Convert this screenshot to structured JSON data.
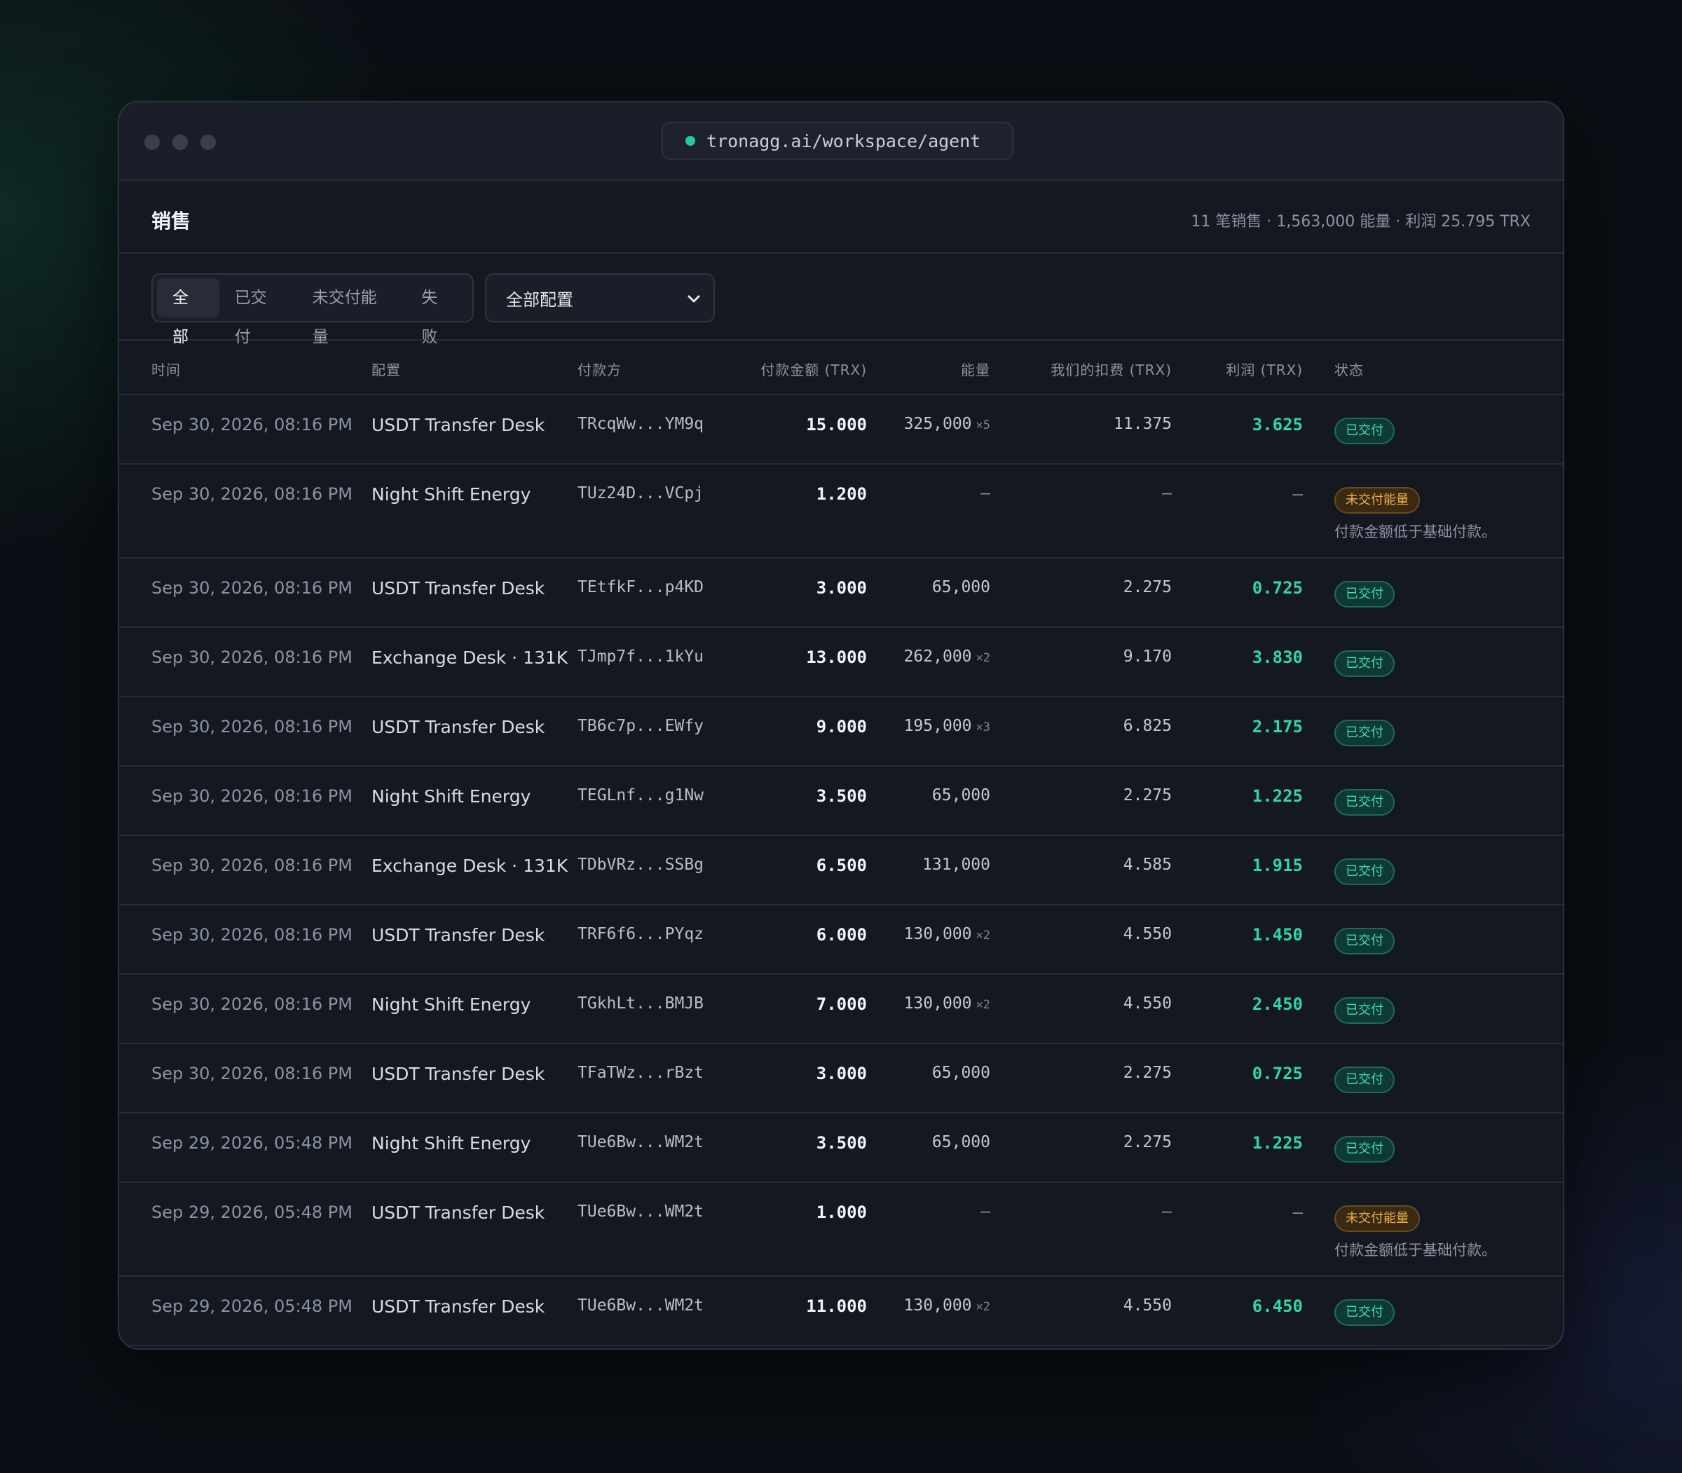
{
  "window": {
    "url": "tronagg.ai/workspace/agent"
  },
  "header": {
    "title": "销售",
    "summary": "11 笔销售 · 1,563,000 能量 · 利润 25.795 TRX"
  },
  "filters": {
    "tabs": [
      "全部",
      "已交付",
      "未交付能量",
      "失败"
    ],
    "active_tab": "全部",
    "config_select": "全部配置"
  },
  "table": {
    "columns": [
      "时间",
      "配置",
      "付款方",
      "付款金额 (TRX)",
      "能量",
      "我们的扣费 (TRX)",
      "利润 (TRX)",
      "状态"
    ],
    "rows": [
      {
        "time": "Sep 30, 2026, 08:16 PM",
        "config": "USDT Transfer Desk",
        "payer": "TRcqWw...YM9q",
        "amount": "15.000",
        "energy": "325,000",
        "mult": "×5",
        "fee": "11.375",
        "profit": "3.625",
        "status": "已交付",
        "note": ""
      },
      {
        "time": "Sep 30, 2026, 08:16 PM",
        "config": "Night Shift Energy",
        "payer": "TUz24D...VCpj",
        "amount": "1.200",
        "energy": "—",
        "mult": "",
        "fee": "—",
        "profit": "—",
        "status": "未交付能量",
        "note": "付款金额低于基础付款。"
      },
      {
        "time": "Sep 30, 2026, 08:16 PM",
        "config": "USDT Transfer Desk",
        "payer": "TEtfkF...p4KD",
        "amount": "3.000",
        "energy": "65,000",
        "mult": "",
        "fee": "2.275",
        "profit": "0.725",
        "status": "已交付",
        "note": ""
      },
      {
        "time": "Sep 30, 2026, 08:16 PM",
        "config": "Exchange Desk · 131K",
        "payer": "TJmp7f...1kYu",
        "amount": "13.000",
        "energy": "262,000",
        "mult": "×2",
        "fee": "9.170",
        "profit": "3.830",
        "status": "已交付",
        "note": ""
      },
      {
        "time": "Sep 30, 2026, 08:16 PM",
        "config": "USDT Transfer Desk",
        "payer": "TB6c7p...EWfy",
        "amount": "9.000",
        "energy": "195,000",
        "mult": "×3",
        "fee": "6.825",
        "profit": "2.175",
        "status": "已交付",
        "note": ""
      },
      {
        "time": "Sep 30, 2026, 08:16 PM",
        "config": "Night Shift Energy",
        "payer": "TEGLnf...g1Nw",
        "amount": "3.500",
        "energy": "65,000",
        "mult": "",
        "fee": "2.275",
        "profit": "1.225",
        "status": "已交付",
        "note": ""
      },
      {
        "time": "Sep 30, 2026, 08:16 PM",
        "config": "Exchange Desk · 131K",
        "payer": "TDbVRz...SSBg",
        "amount": "6.500",
        "energy": "131,000",
        "mult": "",
        "fee": "4.585",
        "profit": "1.915",
        "status": "已交付",
        "note": ""
      },
      {
        "time": "Sep 30, 2026, 08:16 PM",
        "config": "USDT Transfer Desk",
        "payer": "TRF6f6...PYqz",
        "amount": "6.000",
        "energy": "130,000",
        "mult": "×2",
        "fee": "4.550",
        "profit": "1.450",
        "status": "已交付",
        "note": ""
      },
      {
        "time": "Sep 30, 2026, 08:16 PM",
        "config": "Night Shift Energy",
        "payer": "TGkhLt...BMJB",
        "amount": "7.000",
        "energy": "130,000",
        "mult": "×2",
        "fee": "4.550",
        "profit": "2.450",
        "status": "已交付",
        "note": ""
      },
      {
        "time": "Sep 30, 2026, 08:16 PM",
        "config": "USDT Transfer Desk",
        "payer": "TFaTWz...rBzt",
        "amount": "3.000",
        "energy": "65,000",
        "mult": "",
        "fee": "2.275",
        "profit": "0.725",
        "status": "已交付",
        "note": ""
      },
      {
        "time": "Sep 29, 2026, 05:48 PM",
        "config": "Night Shift Energy",
        "payer": "TUe6Bw...WM2t",
        "amount": "3.500",
        "energy": "65,000",
        "mult": "",
        "fee": "2.275",
        "profit": "1.225",
        "status": "已交付",
        "note": ""
      },
      {
        "time": "Sep 29, 2026, 05:48 PM",
        "config": "USDT Transfer Desk",
        "payer": "TUe6Bw...WM2t",
        "amount": "1.000",
        "energy": "—",
        "mult": "",
        "fee": "—",
        "profit": "—",
        "status": "未交付能量",
        "note": "付款金额低于基础付款。"
      },
      {
        "time": "Sep 29, 2026, 05:48 PM",
        "config": "USDT Transfer Desk",
        "payer": "TUe6Bw...WM2t",
        "amount": "11.000",
        "energy": "130,000",
        "mult": "×2",
        "fee": "4.550",
        "profit": "6.450",
        "status": "已交付",
        "note": ""
      }
    ]
  },
  "colors": {
    "accent": "#2fd6a8",
    "paid_badge": "#3fe0b3",
    "unpaid_badge": "#f0b24a",
    "background": "#141821"
  },
  "icons": {
    "select_chevron": "chevron-down-icon",
    "live_indicator": "status-dot-icon"
  }
}
